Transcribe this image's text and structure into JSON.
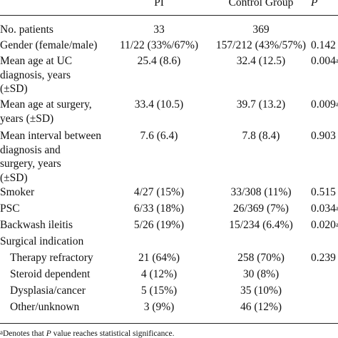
{
  "table": {
    "headers": {
      "group1": "PI",
      "group2": "Control Group",
      "p": "P"
    },
    "rows": [
      {
        "lines": [
          "No. patients"
        ],
        "v1": "33",
        "v2": "369",
        "p": "",
        "sup": ""
      },
      {
        "lines": [
          "Gender (female/male)"
        ],
        "v1": "11/22 (33%/67%)",
        "v2": "157/212 (43%/57%)",
        "p": "0.142",
        "sup": ""
      },
      {
        "lines": [
          "Mean age at UC",
          "diagnosis, years",
          "(±SD)"
        ],
        "v1": "25.4 (8.6)",
        "v2": "32.4 (12.5)",
        "p": "0.004",
        "sup": "a"
      },
      {
        "lines": [
          "Mean age at surgery,",
          "years (±SD)"
        ],
        "v1": "33.4 (10.5)",
        "v2": "39.7 (13.2)",
        "p": "0.009",
        "sup": "a"
      },
      {
        "lines": [
          "Mean interval between",
          "diagnosis and",
          "surgery, years",
          "(±SD)"
        ],
        "v1": "7.6 (6.4)",
        "v2": "7.8 (8.4)",
        "p": "0.903",
        "sup": ""
      },
      {
        "lines": [
          "Smoker"
        ],
        "v1": "4/27 (15%)",
        "v2": "33/308 (11%)",
        "p": "0.515",
        "sup": ""
      },
      {
        "lines": [
          "PSC"
        ],
        "v1": "6/33 (18%)",
        "v2": "26/369 (7%)",
        "p": "0.034",
        "sup": "a"
      },
      {
        "lines": [
          "Backwash ileitis"
        ],
        "v1": "5/26 (19%)",
        "v2": "15/234 (6.4%)",
        "p": "0.020",
        "sup": "a"
      },
      {
        "lines": [
          "Surgical indication"
        ],
        "v1": "",
        "v2": "",
        "p": "",
        "sup": ""
      },
      {
        "lines": [
          "Therapy refractory"
        ],
        "v1": "21 (64%)",
        "v2": "258 (70%)",
        "p": "0.239",
        "sup": "",
        "sub": true
      },
      {
        "lines": [
          "Steroid dependent"
        ],
        "v1": "4 (12%)",
        "v2": "30 (8%)",
        "p": "",
        "sup": "",
        "sub": true
      },
      {
        "lines": [
          "Dysplasia/cancer"
        ],
        "v1": "5 (15%)",
        "v2": "35 (10%)",
        "p": "",
        "sup": "",
        "sub": true
      },
      {
        "lines": [
          "Other/unknown"
        ],
        "v1": "3 (9%)",
        "v2": "46 (12%)",
        "p": "",
        "sup": "",
        "sub": true
      }
    ],
    "footnote": {
      "sup": "a",
      "prefix": "Denotes that ",
      "italic": "P",
      "suffix": " value reaches statistical significance."
    }
  }
}
